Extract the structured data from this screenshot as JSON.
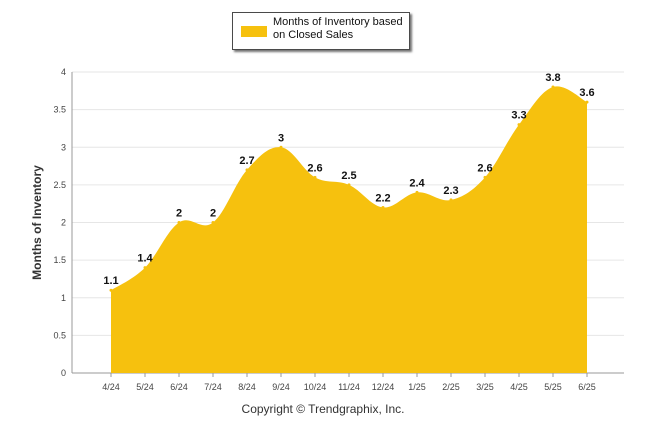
{
  "chart_data": {
    "type": "area",
    "legend": {
      "label": "Months of Inventory based on Closed Sales",
      "placement": "top-center"
    },
    "ylabel": "Months of Inventory",
    "xlabel": "",
    "ylim": [
      0,
      4
    ],
    "yticks": [
      "0",
      "0.5",
      "1",
      "1.5",
      "2",
      "2.5",
      "3",
      "3.5",
      "4"
    ],
    "grid": true,
    "categories": [
      "4/24",
      "5/24",
      "6/24",
      "7/24",
      "8/24",
      "9/24",
      "10/24",
      "11/24",
      "12/24",
      "1/25",
      "2/25",
      "3/25",
      "4/25",
      "5/25",
      "6/25"
    ],
    "series": [
      {
        "name": "Months of Inventory based on Closed Sales",
        "values": [
          1.1,
          1.4,
          2,
          2,
          2.7,
          3,
          2.6,
          2.5,
          2.2,
          2.4,
          2.3,
          2.6,
          3.3,
          3.8,
          3.6
        ],
        "labels": [
          "1.1",
          "1.4",
          "2",
          "2",
          "2.7",
          "3",
          "2.6",
          "2.5",
          "2.2",
          "2.4",
          "2.3",
          "2.6",
          "3.3",
          "3.8",
          "3.6"
        ],
        "color": "#f6c10e"
      }
    ]
  },
  "footer": {
    "copyright": "Copyright © Trendgraphix, Inc."
  },
  "colors": {
    "grid": "#e6e6e6",
    "axis": "#999999",
    "tick_text": "#444444",
    "label_text": "#111111"
  }
}
